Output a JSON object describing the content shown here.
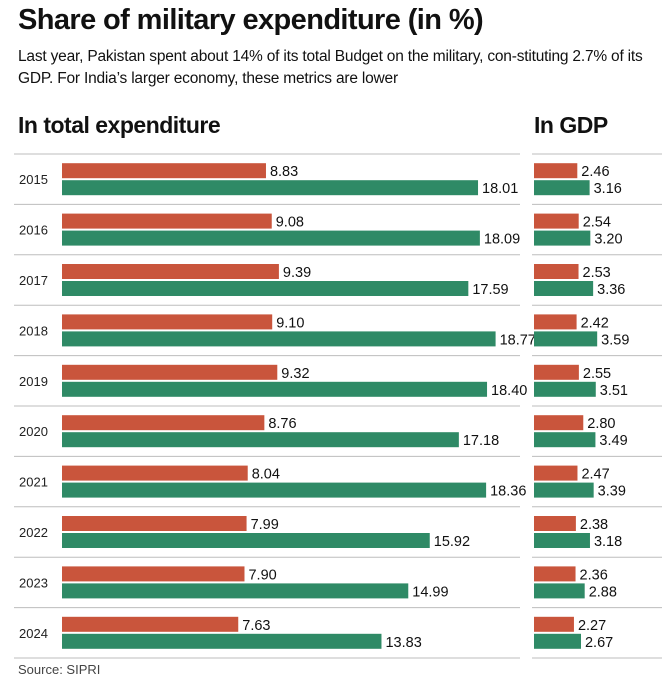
{
  "title": "Share of military expenditure (in %)",
  "subtitle": "Last year, Pakistan spent about 14% of its total Budget on the military, con-stituting 2.7% of its GDP. For India’s larger economy, these metrics are lower",
  "source": "Source: SIPRI",
  "colors": {
    "series_a": "#c9553c",
    "series_b": "#2f8a66",
    "rule": "#bdbdbd"
  },
  "chart_data": [
    {
      "type": "bar",
      "title": "In total expenditure",
      "categories": [
        "2015",
        "2016",
        "2017",
        "2018",
        "2019",
        "2020",
        "2021",
        "2022",
        "2023",
        "2024"
      ],
      "series": [
        {
          "color": "#c9553c",
          "values": [
            8.83,
            9.08,
            9.39,
            9.1,
            9.32,
            8.76,
            8.04,
            7.99,
            7.9,
            7.63
          ]
        },
        {
          "color": "#2f8a66",
          "values": [
            18.01,
            18.09,
            17.59,
            18.77,
            18.4,
            17.18,
            18.36,
            15.92,
            14.99,
            13.83
          ]
        }
      ]
    },
    {
      "type": "bar",
      "title": "In GDP",
      "categories": [
        "2015",
        "2016",
        "2017",
        "2018",
        "2019",
        "2020",
        "2021",
        "2022",
        "2023",
        "2024"
      ],
      "series": [
        {
          "color": "#c9553c",
          "values": [
            2.46,
            2.54,
            2.53,
            2.42,
            2.55,
            2.8,
            2.47,
            2.38,
            2.36,
            2.27
          ]
        },
        {
          "color": "#2f8a66",
          "values": [
            3.16,
            3.2,
            3.36,
            3.59,
            3.51,
            3.49,
            3.39,
            3.18,
            2.88,
            2.67
          ]
        }
      ]
    }
  ]
}
